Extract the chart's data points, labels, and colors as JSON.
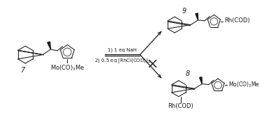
{
  "background_color": "#ffffff",
  "fig_width": 3.78,
  "fig_height": 1.81,
  "dpi": 100,
  "structures": {
    "compound7_label": "7",
    "compound8_label": "8",
    "compound9_label": "9",
    "reagents_line1": "1) 1 eq NaH",
    "reagents_line2": "2) 0.5 eq [RhCl(COD)]$_2$",
    "mo_label": "Mo(CO)$_3$Me",
    "mo_label2": "Mo(CO)$_3$Me",
    "rh_label8": "Rh(COD)",
    "rh_label9": "Rh(COD)"
  },
  "colors": {
    "line_color": "#1a1a1a",
    "text_color": "#1a1a1a",
    "bg": "#ffffff"
  },
  "font_size_label": 6.5,
  "font_size_reagent": 5.0,
  "font_size_compound": 6.0
}
